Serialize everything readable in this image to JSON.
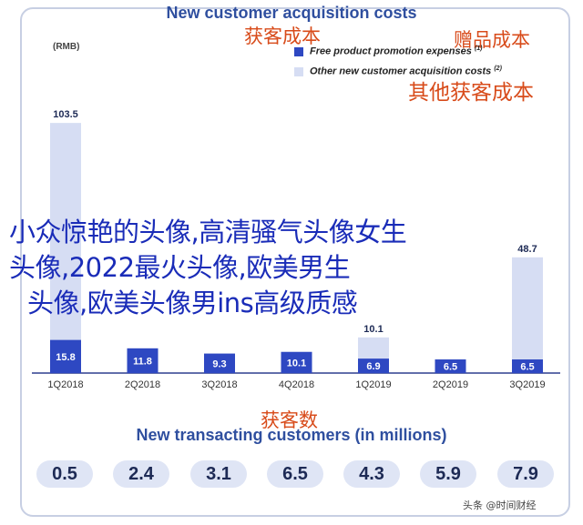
{
  "header": {
    "title": "New customer acquisition costs",
    "unit": "(RMB)"
  },
  "cn_labels": {
    "total_cost": "获客成本",
    "free_promo_cost": "赠品成本",
    "other_cost": "其他获客成本",
    "customer_count": "获客数"
  },
  "legend": [
    {
      "label": "Free product promotion expenses",
      "sup": "(1)",
      "color": "#2e48c2"
    },
    {
      "label": "Other new customer acquisition costs",
      "sup": "(2)",
      "color": "#d6ddf3"
    }
  ],
  "overlay_text": {
    "line1": "小众惊艳的头像,高清骚气头像女生",
    "line2": "头像,2022最火头像,欧美男生",
    "line3": "头像,欧美头像男ins高级质感"
  },
  "chart_data": {
    "type": "bar",
    "stacked": true,
    "categories": [
      "1Q2018",
      "2Q2018",
      "3Q2018",
      "4Q2018",
      "1Q2019",
      "2Q2019",
      "3Q2019"
    ],
    "series": [
      {
        "name": "Free product promotion expenses",
        "values": [
          15.8,
          11.8,
          9.3,
          10.1,
          6.9,
          6.5,
          6.5
        ],
        "color": "#2e48c2"
      },
      {
        "name": "Other new customer acquisition costs",
        "values": [
          103.5,
          null,
          null,
          null,
          10.1,
          null,
          48.7
        ],
        "color": "#d6ddf3"
      }
    ],
    "ylim": [
      0,
      125
    ],
    "grid": false,
    "legend_position": "top-right"
  },
  "transacting": {
    "title": "New transacting customers (in millions)",
    "values": [
      "0.5",
      "2.4",
      "3.1",
      "6.5",
      "4.3",
      "5.9",
      "7.9"
    ]
  },
  "watermark": "头条 @时间财经"
}
